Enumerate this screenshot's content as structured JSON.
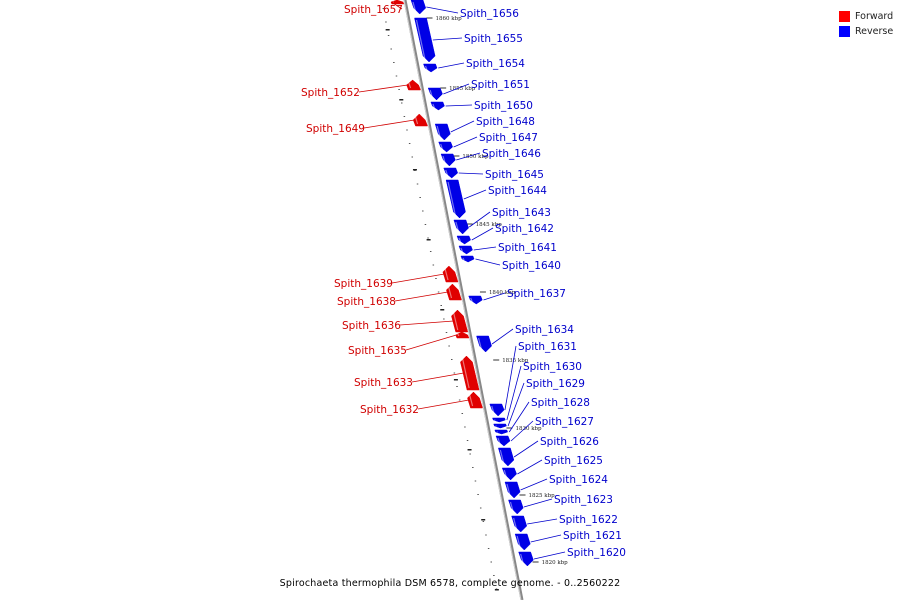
{
  "legend": {
    "forward": {
      "label": "Forward",
      "color": "#ff0000"
    },
    "reverse": {
      "label": "Reverse",
      "color": "#0000ff"
    }
  },
  "caption": "Spirochaeta thermophila DSM 6578, complete genome. - 0..2560222",
  "colors": {
    "forward": "#e00000",
    "reverse": "#0000e6",
    "backbone": "#888888"
  },
  "scale_ticks": [
    "1860 kbp",
    "1855 kbp",
    "1850 kbp",
    "1845 kbp",
    "1840 kbp",
    "1835 kbp",
    "1830 kbp",
    "1825 kbp",
    "1820 kbp"
  ],
  "forward_genes": [
    "Spith_1657",
    "Spith_1652",
    "Spith_1649",
    "Spith_1639",
    "Spith_1638",
    "Spith_1636",
    "Spith_1635",
    "Spith_1633",
    "Spith_1632"
  ],
  "reverse_genes": [
    "Spith_1656",
    "Spith_1655",
    "Spith_1654",
    "Spith_1651",
    "Spith_1650",
    "Spith_1648",
    "Spith_1647",
    "Spith_1646",
    "Spith_1645",
    "Spith_1644",
    "Spith_1643",
    "Spith_1642",
    "Spith_1641",
    "Spith_1640",
    "Spith_1637",
    "Spith_1634",
    "Spith_1631",
    "Spith_1630",
    "Spith_1629",
    "Spith_1628",
    "Spith_1627",
    "Spith_1626",
    "Spith_1625",
    "Spith_1624",
    "Spith_1623",
    "Spith_1622",
    "Spith_1621",
    "Spith_1620"
  ]
}
